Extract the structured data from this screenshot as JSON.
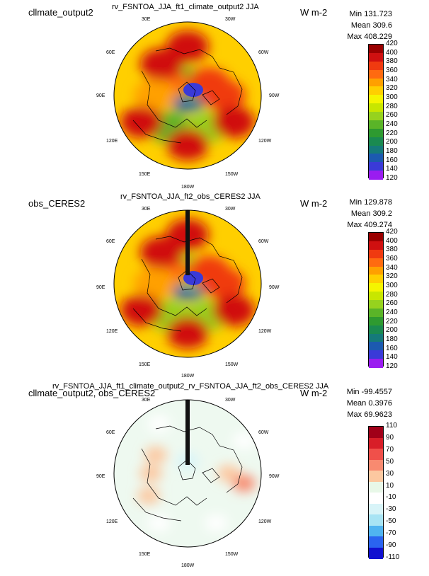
{
  "chart_data": [
    {
      "type": "heatmap",
      "projection": "polar-stereographic-north",
      "title": "cllmate_output2",
      "subtitle": "rv_FSNTOA_JJA_ft1_climate_output2  JJA",
      "units": "W m-2",
      "stats": {
        "min": "Min 131.723",
        "mean": "Mean 309.6",
        "max": "Max 408.229"
      },
      "longitude_labels": {
        "30E": "30E",
        "30W": "30W",
        "60E": "60E",
        "60W": "60W",
        "90E": "90E",
        "90W": "90W",
        "120E": "120E",
        "120W": "120W",
        "150E": "150E",
        "150W": "150W",
        "180W": "180W"
      },
      "color_levels": [
        "420",
        "400",
        "380",
        "360",
        "340",
        "320",
        "300",
        "280",
        "260",
        "240",
        "220",
        "200",
        "180",
        "160",
        "140",
        "120"
      ],
      "colors": [
        "#9a0000",
        "#d01010",
        "#f03a10",
        "#ff6a10",
        "#ffa000",
        "#ffcf00",
        "#f5f500",
        "#c8e600",
        "#96d21e",
        "#5ab428",
        "#2e9a30",
        "#1a8a50",
        "#157a7a",
        "#1c5ab0",
        "#3a3ad8",
        "#9a1cf0"
      ],
      "regions": [
        {
          "lon": 0,
          "lat": 90,
          "value": 150
        },
        {
          "lon": 30,
          "lat": 70,
          "value": 220
        },
        {
          "lon": -30,
          "lat": 75,
          "value": 230
        },
        {
          "lon": 60,
          "lat": 60,
          "value": 350
        },
        {
          "lon": -60,
          "lat": 60,
          "value": 360
        },
        {
          "lon": 90,
          "lat": 50,
          "value": 330
        },
        {
          "lon": -90,
          "lat": 45,
          "value": 370
        },
        {
          "lon": 150,
          "lat": 45,
          "value": 230
        },
        {
          "lon": -150,
          "lat": 45,
          "value": 240
        },
        {
          "lon": 180,
          "lat": 30,
          "value": 380
        },
        {
          "lon": 120,
          "lat": 25,
          "value": 390
        },
        {
          "lon": -120,
          "lat": 25,
          "value": 380
        },
        {
          "lon": 0,
          "lat": 30,
          "value": 380
        },
        {
          "lon": 40,
          "lat": 40,
          "value": 380
        }
      ]
    },
    {
      "type": "heatmap",
      "projection": "polar-stereographic-north",
      "title": "obs_CERES2",
      "subtitle": "rv_FSNTOA_JJA_ft2_obs_CERES2  JJA",
      "units": "W m-2",
      "stats": {
        "min": "Min 129.878",
        "mean": "Mean 309.2",
        "max": "Max 409.274"
      },
      "longitude_labels": {
        "30E": "30E",
        "30W": "30W",
        "60E": "60E",
        "60W": "60W",
        "90E": "90E",
        "90W": "90W",
        "120E": "120E",
        "120W": "120W",
        "150E": "150E",
        "150W": "150W",
        "180W": "180W"
      },
      "color_levels": [
        "420",
        "400",
        "380",
        "360",
        "340",
        "320",
        "300",
        "280",
        "260",
        "240",
        "220",
        "200",
        "180",
        "160",
        "140",
        "120"
      ],
      "colors": [
        "#9a0000",
        "#d01010",
        "#f03a10",
        "#ff6a10",
        "#ffa000",
        "#ffcf00",
        "#f5f500",
        "#c8e600",
        "#96d21e",
        "#5ab428",
        "#2e9a30",
        "#1a8a50",
        "#157a7a",
        "#1c5ab0",
        "#3a3ad8",
        "#9a1cf0"
      ],
      "regions": [
        {
          "lon": 0,
          "lat": 90,
          "value": 150
        },
        {
          "lon": 30,
          "lat": 70,
          "value": 230
        },
        {
          "lon": -30,
          "lat": 75,
          "value": 240
        },
        {
          "lon": 60,
          "lat": 60,
          "value": 350
        },
        {
          "lon": -60,
          "lat": 60,
          "value": 360
        },
        {
          "lon": 90,
          "lat": 50,
          "value": 330
        },
        {
          "lon": -90,
          "lat": 45,
          "value": 370
        },
        {
          "lon": 150,
          "lat": 45,
          "value": 250
        },
        {
          "lon": -150,
          "lat": 45,
          "value": 250
        },
        {
          "lon": 180,
          "lat": 30,
          "value": 380
        },
        {
          "lon": 120,
          "lat": 25,
          "value": 390
        },
        {
          "lon": -120,
          "lat": 25,
          "value": 380
        },
        {
          "lon": 0,
          "lat": 30,
          "value": 380
        },
        {
          "lon": 40,
          "lat": 40,
          "value": 390
        }
      ]
    },
    {
      "type": "heatmap",
      "projection": "polar-stereographic-north",
      "title": "cllmate_output2, obs_CERES2",
      "subtitle": "rv_FSNTOA_JJA_ft1_climate_output2_rv_FSNTOA_JJA_ft2_obs_CERES2  JJA",
      "units": "W m-2",
      "stats": {
        "min": "Min -99.4557",
        "mean": "Mean 0.3976",
        "max": "Max 69.9623"
      },
      "longitude_labels": {
        "30E": "30E",
        "30W": "30W",
        "60E": "60E",
        "60W": "60W",
        "90E": "90E",
        "90W": "90W",
        "120E": "120E",
        "120W": "120W",
        "150E": "150E",
        "150W": "150W",
        "180W": "180W"
      },
      "color_levels": [
        "110",
        "90",
        "70",
        "50",
        "30",
        "10",
        "-10",
        "-30",
        "-50",
        "-70",
        "-90",
        "-110"
      ],
      "colors": [
        "#a00018",
        "#d81e28",
        "#f0504a",
        "#f88a70",
        "#fcc8a0",
        "#e8f8e8",
        "#ffffff",
        "#d8f4f8",
        "#a8e4f4",
        "#50b4f0",
        "#2a64f0",
        "#1010d0"
      ],
      "regions": [
        {
          "lon": 90,
          "lat": 45,
          "value": 20
        },
        {
          "lon": 120,
          "lat": 35,
          "value": 25
        },
        {
          "lon": -90,
          "lat": 40,
          "value": 15
        },
        {
          "lon": -100,
          "lat": 20,
          "value": 30
        },
        {
          "lon": 60,
          "lat": 45,
          "value": 20
        },
        {
          "lon": 0,
          "lat": 75,
          "value": -40
        },
        {
          "lon": 150,
          "lat": 20,
          "value": -20
        },
        {
          "lon": -150,
          "lat": 20,
          "value": -15
        },
        {
          "lon": -60,
          "lat": 10,
          "value": -30
        },
        {
          "lon": 30,
          "lat": 20,
          "value": -20
        }
      ]
    }
  ]
}
